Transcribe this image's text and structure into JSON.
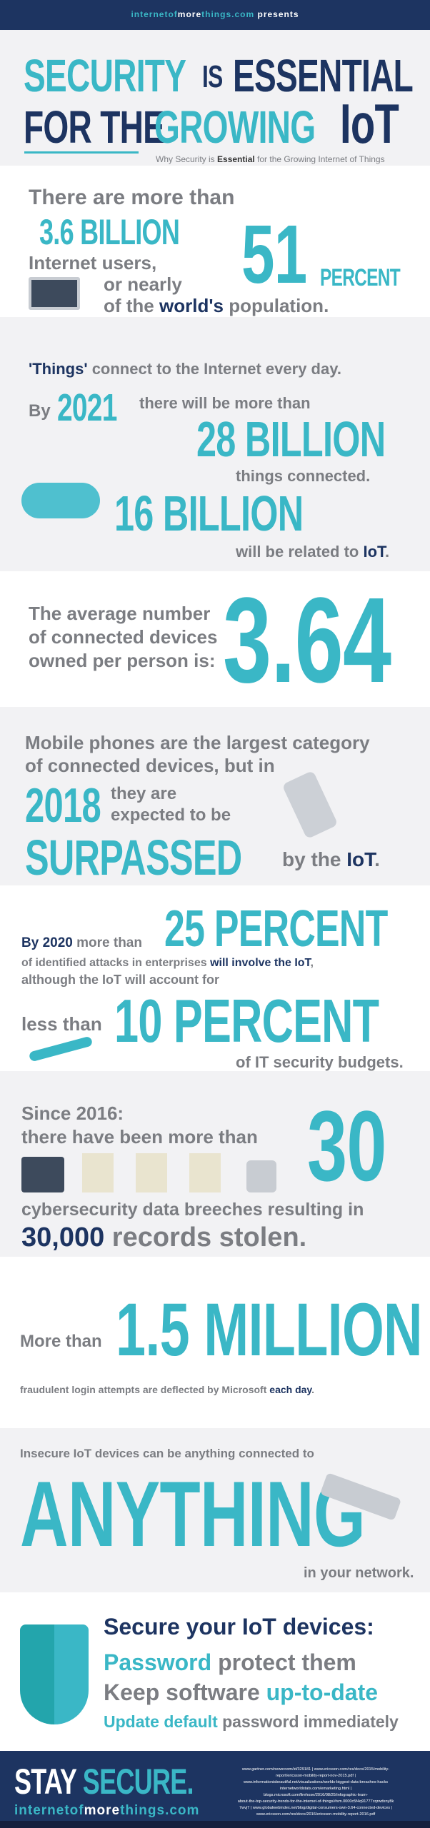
{
  "header": {
    "brand_a": "internetof",
    "brand_b": "more",
    "brand_c": "things.com",
    "presents": "presents"
  },
  "title": {
    "w1": "SECURITY",
    "w2": "IS",
    "w3": "ESSENTIAL",
    "w4": "FOR THE",
    "w5": "GROWING",
    "w6": "IoT",
    "subtitle_a": "Why Security is ",
    "subtitle_b": "Essential",
    "subtitle_c": " for the Growing Internet of Things"
  },
  "s1": {
    "l1": "There are more than",
    "l2": "3.6 BILLION",
    "l3": "Internet users,",
    "l4": "or nearly",
    "big": "51",
    "pct": "PERCENT",
    "l5a": "of the ",
    "l5b": "world's",
    "l5c": " population."
  },
  "s2": {
    "l1a": "'Things'",
    "l1b": " connect to the Internet every day.",
    "by": "By",
    "year": "2021",
    "l2": "there will be more than",
    "big1": "28 BILLION",
    "l3": "things connected.",
    "big2": "16 BILLION",
    "l4a": "will be related to ",
    "l4b": "IoT",
    "l4c": "."
  },
  "s3": {
    "l1": "The average number",
    "l2": "of connected devices",
    "l3": "owned per person is:",
    "big": "3.64"
  },
  "s4": {
    "l1": "Mobile phones are the largest category",
    "l2": "of connected devices, but in",
    "year": "2018",
    "l3": "they are",
    "l4": "expected to be",
    "big": "SURPASSED",
    "l5a": "by the ",
    "l5b": "IoT",
    "l5c": "."
  },
  "s5": {
    "by": "By 2020",
    "l1": " more than",
    "big1": "25 PERCENT",
    "l2a": "of identified attacks in enterprises ",
    "l2b": "will involve the IoT",
    ",": ",",
    "l3": "although the IoT will account for",
    "less": "less than",
    "big2": "10 PERCENT",
    "l4": "of IT security budgets."
  },
  "s6": {
    "l1": "Since 2016:",
    "l2": "there have been more than",
    "big": "30",
    "l3": "cybersecurity data breeches resulting in",
    "l4a": "30,000",
    "l4b": " records stolen."
  },
  "s7": {
    "l1": "More than",
    "big": "1.5 MILLION",
    "l2a": "fraudulent login attempts are deflected by Microsoft ",
    "l2b": "each day",
    "l2c": "."
  },
  "s8": {
    "l1": "Insecure IoT devices can be anything connected to",
    "big": "ANYTHING",
    "l2": "in your network."
  },
  "s9": {
    "title": "Secure your IoT devices:",
    "l1a": "Password",
    "l1b": " protect them",
    "l2a": "Keep software ",
    "l2b": "up-to-date",
    "l3a": "Update default",
    "l3b": " password immediately"
  },
  "footer": {
    "stay": "STAY",
    "secure": "SECURE.",
    "brand_a": "internetof",
    "brand_b": "more",
    "brand_c": "things.com",
    "sources": [
      "www.gartner.com/newsroom/id/329181 | www.ericsson.com/res/docs/2015/mobility-",
      "report/ericsson-mobility-report-nov-2015.pdf |",
      "www.informationisbeautiful.net/visualizations/worlds-biggest-data-breaches-hacks",
      "internetworldstats.com/emarketing.html |",
      "blogs.microsoft.com/firehose/2016/08/25/infographic-learn-",
      "about-the-top-security-trends-for-the-internet-of-things/#sm.0000c5f4q91777cqrwdxny8k",
      "7wvj7 | www.globalwebindex.net/blog/digital-consumers-own-3.64-connected-devices |",
      "www.ericsson.com/res/docs/2016/ericsson-mobility-report-2016.pdf"
    ]
  },
  "colors": {
    "teal": "#3ab7c6",
    "navy": "#1d3461",
    "gray": "#7b7d82"
  }
}
